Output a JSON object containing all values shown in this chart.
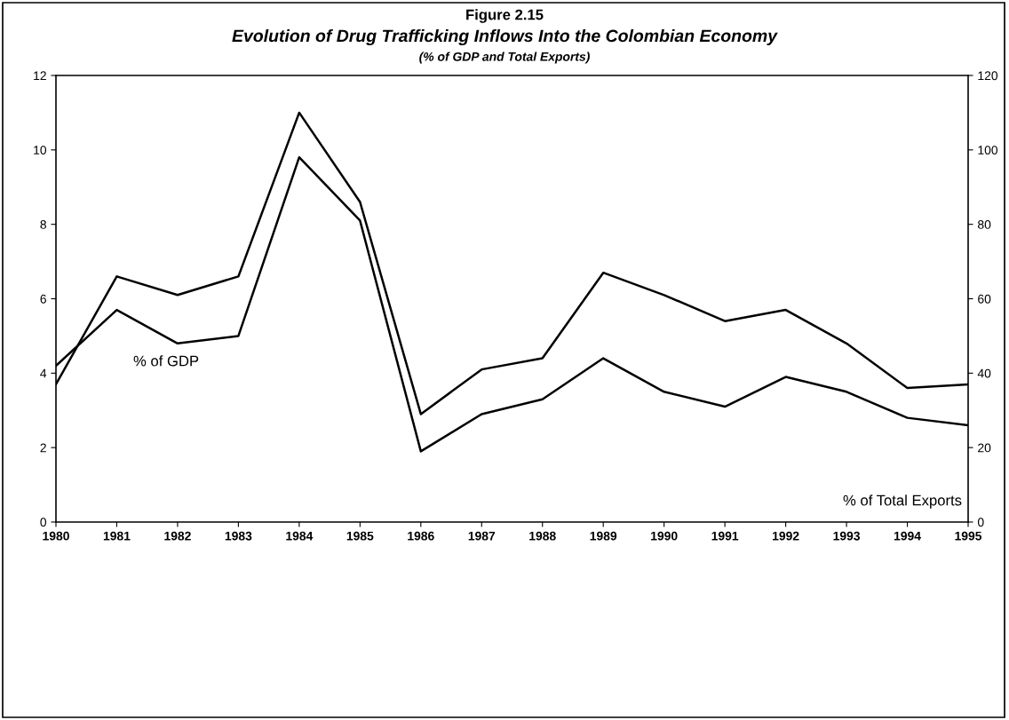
{
  "chart_data": {
    "type": "line",
    "title": "Figure 2.15",
    "subtitle": "Evolution of Drug Trafficking Inflows Into the Colombian Economy",
    "annotations": [
      "(% of GDP and Total Exports)",
      "% of GDP",
      "% of Total Exports"
    ],
    "x": [
      1980,
      1981,
      1982,
      1983,
      1984,
      1985,
      1986,
      1987,
      1988,
      1989,
      1990,
      1991,
      1992,
      1993,
      1994,
      1995
    ],
    "xlim": [
      1980,
      1995
    ],
    "xticks": [
      1980,
      1981,
      1982,
      1983,
      1984,
      1985,
      1986,
      1987,
      1988,
      1989,
      1990,
      1991,
      1992,
      1993,
      1994,
      1995
    ],
    "ylim": [
      0,
      12
    ],
    "yticks": [
      0,
      2,
      4,
      6,
      8,
      10,
      12
    ],
    "y2lim": [
      0,
      120
    ],
    "y2ticks": [
      0,
      20,
      40,
      60,
      80,
      100,
      120
    ],
    "grid": false,
    "legend": false,
    "marker": "none",
    "line_style": "solid",
    "series": [
      {
        "color": "#000000",
        "values": [
          4.2,
          5.7,
          4.8,
          5.0,
          9.8,
          8.1,
          1.9,
          2.9,
          3.3,
          4.4,
          3.5,
          3.1,
          3.9,
          3.5,
          2.8,
          2.6
        ]
      },
      {
        "color": "#000000",
        "axis": "y2",
        "values": [
          37,
          66,
          61,
          66,
          110,
          86,
          29,
          41,
          44,
          67,
          61,
          54,
          57,
          48,
          36,
          37
        ]
      }
    ]
  }
}
